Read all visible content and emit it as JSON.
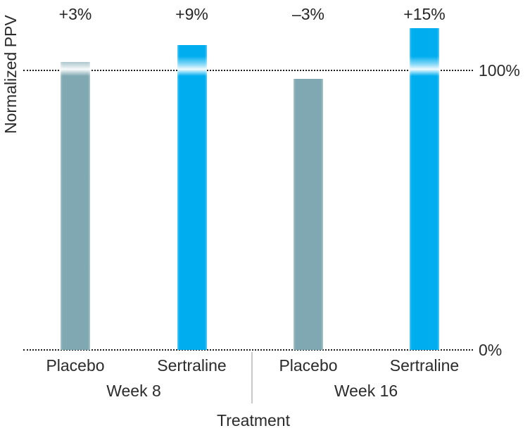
{
  "chart_data": {
    "type": "bar",
    "title": "",
    "xlabel": "Treatment",
    "ylabel": "Normalized PPV",
    "ylim": [
      0,
      125
    ],
    "grid": "off",
    "reference_line": {
      "value": 100,
      "label": "100%"
    },
    "baseline": {
      "value": 0,
      "label": "0%"
    },
    "series_colors": {
      "placebo": "#7FA8B2",
      "sertraline": "#00AEEF"
    },
    "dotted_line_color": "#1e1e1e",
    "text_color": "#2b2b2b",
    "groups": [
      {
        "label": "Week 8",
        "bars": [
          {
            "category": "Placebo",
            "series": "placebo",
            "value_pct": 103,
            "delta_label": "+3%"
          },
          {
            "category": "Sertraline",
            "series": "sertraline",
            "value_pct": 109,
            "delta_label": "+9%"
          }
        ]
      },
      {
        "label": "Week 16",
        "bars": [
          {
            "category": "Placebo",
            "series": "placebo",
            "value_pct": 97,
            "delta_label": "–3%"
          },
          {
            "category": "Sertraline",
            "series": "sertraline",
            "value_pct": 115,
            "delta_label": "+15%"
          }
        ]
      }
    ]
  }
}
